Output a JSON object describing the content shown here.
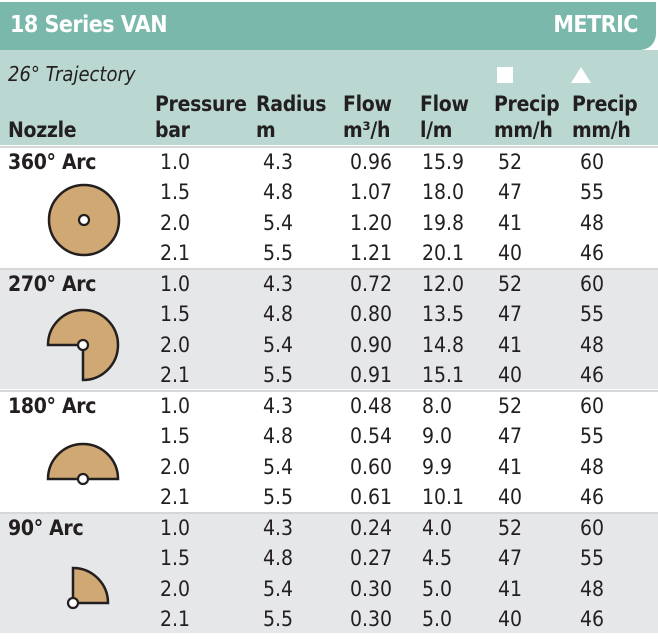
{
  "title": "18 Series VAN",
  "units": "METRIC",
  "trajectory": "26° Trajectory",
  "colors": {
    "title_bar": "#7ab8ab",
    "subheader": "#bad8d1",
    "alt_row": "#e6e7e9",
    "nozzle_fill": "#cfa874"
  },
  "headers": {
    "nozzle": "Nozzle",
    "pressure": [
      "Pressure",
      "bar"
    ],
    "radius": [
      "Radius",
      "m"
    ],
    "flow_m3": [
      "Flow",
      "m³/h"
    ],
    "flow_lm": [
      "Flow",
      "l/m"
    ],
    "precip_square": [
      "Precip",
      "mm/h"
    ],
    "precip_triangle": [
      "Precip",
      "mm/h"
    ]
  },
  "precip_icons": [
    "square-icon",
    "triangle-icon"
  ],
  "groups": [
    {
      "label": "360° Arc",
      "arc": 360,
      "rows": [
        [
          "1.0",
          "4.3",
          "0.96",
          "15.9",
          "52",
          "60"
        ],
        [
          "1.5",
          "4.8",
          "1.07",
          "18.0",
          "47",
          "55"
        ],
        [
          "2.0",
          "5.4",
          "1.20",
          "19.8",
          "41",
          "48"
        ],
        [
          "2.1",
          "5.5",
          "1.21",
          "20.1",
          "40",
          "46"
        ]
      ]
    },
    {
      "label": "270° Arc",
      "arc": 270,
      "rows": [
        [
          "1.0",
          "4.3",
          "0.72",
          "12.0",
          "52",
          "60"
        ],
        [
          "1.5",
          "4.8",
          "0.80",
          "13.5",
          "47",
          "55"
        ],
        [
          "2.0",
          "5.4",
          "0.90",
          "14.8",
          "41",
          "48"
        ],
        [
          "2.1",
          "5.5",
          "0.91",
          "15.1",
          "40",
          "46"
        ]
      ]
    },
    {
      "label": "180° Arc",
      "arc": 180,
      "rows": [
        [
          "1.0",
          "4.3",
          "0.48",
          "8.0",
          "52",
          "60"
        ],
        [
          "1.5",
          "4.8",
          "0.54",
          "9.0",
          "47",
          "55"
        ],
        [
          "2.0",
          "5.4",
          "0.60",
          "9.9",
          "41",
          "48"
        ],
        [
          "2.1",
          "5.5",
          "0.61",
          "10.1",
          "40",
          "46"
        ]
      ]
    },
    {
      "label": "90° Arc",
      "arc": 90,
      "rows": [
        [
          "1.0",
          "4.3",
          "0.24",
          "4.0",
          "52",
          "60"
        ],
        [
          "1.5",
          "4.8",
          "0.27",
          "4.5",
          "47",
          "55"
        ],
        [
          "2.0",
          "5.4",
          "0.30",
          "5.0",
          "41",
          "48"
        ],
        [
          "2.1",
          "5.5",
          "0.30",
          "5.0",
          "40",
          "46"
        ]
      ]
    }
  ]
}
